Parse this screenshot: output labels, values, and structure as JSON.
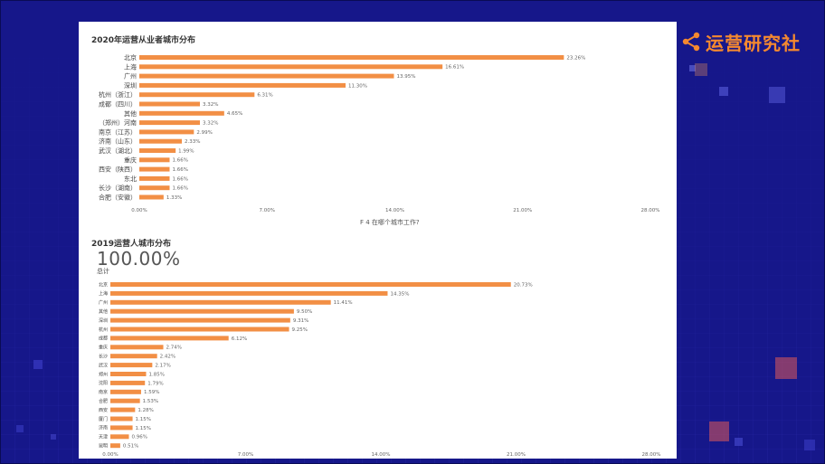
{
  "brand": {
    "name": "运营研究社",
    "color": "#f5892f"
  },
  "colors": {
    "background": "#16178a",
    "panel": "#ffffff",
    "bar": "#f28f45",
    "accent": "#f5892f"
  },
  "chart_data": [
    {
      "type": "bar",
      "orientation": "horizontal",
      "title": "2020年运营从业者城市分布",
      "caption": "F 4 在哪个城市工作?",
      "categories": [
        "北京",
        "上海",
        "广州",
        "深圳",
        "杭州（浙江）",
        "成都（四川）",
        "其他",
        "（郑州）河南",
        "南京（江苏）",
        "济南（山东）",
        "武汉（湖北）",
        "重庆",
        "西安（陕西）",
        "东北",
        "长沙（湖南）",
        "合肥（安徽）"
      ],
      "values": [
        23.26,
        16.61,
        13.95,
        11.3,
        6.31,
        3.32,
        4.65,
        3.32,
        2.99,
        2.33,
        1.99,
        1.66,
        1.66,
        1.66,
        1.66,
        1.33
      ],
      "value_labels": [
        "23.26%",
        "16.61%",
        "13.95%",
        "11.30%",
        "6.31%",
        "3.32%",
        "4.65%",
        "3.32%",
        "2.99%",
        "2.33%",
        "1.99%",
        "1.66%",
        "1.66%",
        "1.66%",
        "1.66%",
        "1.33%"
      ],
      "xticks": [
        "0.00%",
        "7.00%",
        "14.00%",
        "21.00%",
        "28.00%"
      ],
      "xlim": [
        0,
        28
      ]
    },
    {
      "type": "bar",
      "orientation": "horizontal",
      "title": "2019运营人城市分布",
      "total_value": "100.00%",
      "total_label": "总计",
      "categories": [
        "北京",
        "上海",
        "广州",
        "其他",
        "深圳",
        "杭州",
        "成都",
        "重庆",
        "长沙",
        "武汉",
        "郑州",
        "沈阳",
        "南京",
        "合肥",
        "西安",
        "厦门",
        "济南",
        "天津",
        "昆明"
      ],
      "values": [
        20.73,
        14.35,
        11.41,
        9.5,
        9.31,
        9.25,
        6.12,
        2.74,
        2.42,
        2.17,
        1.85,
        1.79,
        1.59,
        1.53,
        1.28,
        1.15,
        1.15,
        0.96,
        0.51
      ],
      "value_labels": [
        "20.73%",
        "14.35%",
        "11.41%",
        "9.50%",
        "9.31%",
        "9.25%",
        "6.12%",
        "2.74%",
        "2.42%",
        "2.17%",
        "1.85%",
        "1.79%",
        "1.59%",
        "1.53%",
        "1.28%",
        "1.15%",
        "1.15%",
        "0.96%",
        "0.51%"
      ],
      "xticks": [
        "0.00%",
        "7.00%",
        "14.00%",
        "21.00%",
        "28.00%"
      ],
      "xlim": [
        0,
        28
      ]
    }
  ]
}
